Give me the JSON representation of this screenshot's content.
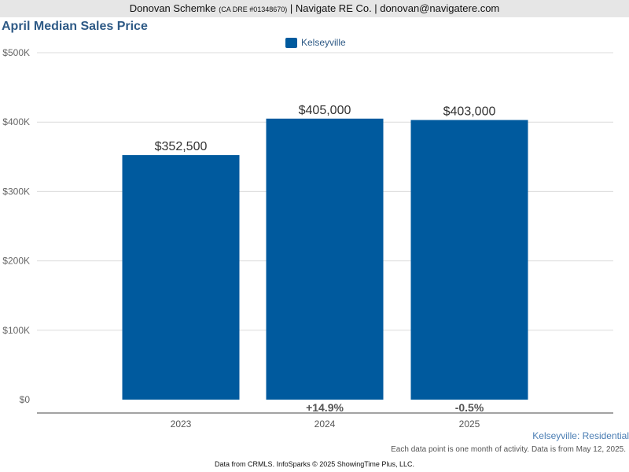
{
  "header": {
    "agent_name": "Donovan Schemke",
    "license": "(CA DRE #01348670)",
    "company": "| Navigate RE Co. | donovan@navigatere.com"
  },
  "chart_data": {
    "type": "bar",
    "title": "April Median Sales Price",
    "categories": [
      "2023",
      "2024",
      "2025"
    ],
    "series": [
      {
        "name": "Kelseyville",
        "values": [
          352500,
          405000,
          403000
        ],
        "color": "#005a9e"
      }
    ],
    "data_labels": [
      "$352,500",
      "$405,000",
      "$403,000"
    ],
    "change_labels": [
      "",
      "+14.9%",
      "-0.5%"
    ],
    "y_ticks": [
      0,
      100000,
      200000,
      300000,
      400000,
      500000
    ],
    "y_tick_labels": [
      "$0",
      "$100K",
      "$200K",
      "$300K",
      "$400K",
      "$500K"
    ],
    "ylim": [
      0,
      500000
    ],
    "grid": true,
    "legend_position": "top-center"
  },
  "footer": {
    "region": "Kelseyville: Residential",
    "note": "Each data point is one month of activity. Data is from May 12, 2025.",
    "credit": "Data from CRMLS. InfoSparks © 2025 ShowingTime Plus, LLC."
  }
}
